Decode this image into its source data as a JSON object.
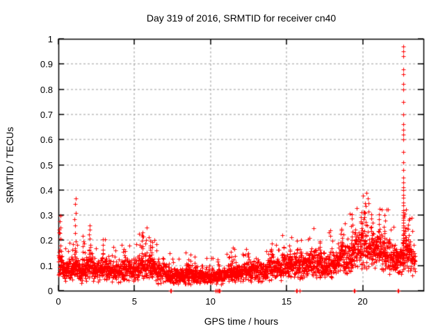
{
  "chart_data": {
    "type": "scatter",
    "title": "Day 319 of 2016, SRMTID for receiver cn40",
    "xlabel": "GPS time / hours",
    "ylabel": "SRMTID / TECUs",
    "xlim": [
      0,
      24
    ],
    "ylim": [
      0,
      1
    ],
    "xticks": {
      "values": [
        0,
        5,
        10,
        15,
        20
      ],
      "labels": [
        "0",
        "5",
        "10",
        "15",
        "20"
      ]
    },
    "yticks": {
      "values": [
        0,
        0.1,
        0.2,
        0.3,
        0.4,
        0.5,
        0.6,
        0.7,
        0.8,
        0.9,
        1
      ],
      "labels": [
        "0",
        "0.1",
        "0.2",
        "0.3",
        "0.4",
        "0.5",
        "0.6",
        "0.7",
        "0.8",
        "0.9",
        "1"
      ]
    },
    "grid": {
      "on": true,
      "color": "#9a9a9a",
      "dash": [
        3,
        3
      ]
    },
    "legend": "none",
    "marker": {
      "shape": "plus",
      "color": "#ff0000",
      "size": 7,
      "stroke": 1
    },
    "border_color": "#000000",
    "series": [
      {
        "name": "SRMTID cn40",
        "sample_step_hours": 0.008333,
        "x_start": 0.0,
        "x_end": 23.45,
        "seed": 319,
        "band_anchors": [
          [
            0.0,
            0.11,
            0.07
          ],
          [
            0.3,
            0.09,
            0.05
          ],
          [
            0.7,
            0.08,
            0.045
          ],
          [
            1.0,
            0.09,
            0.05
          ],
          [
            1.5,
            0.08,
            0.045
          ],
          [
            2.0,
            0.1,
            0.06
          ],
          [
            2.5,
            0.08,
            0.045
          ],
          [
            3.0,
            0.09,
            0.05
          ],
          [
            3.5,
            0.075,
            0.04
          ],
          [
            4.0,
            0.08,
            0.045
          ],
          [
            4.5,
            0.085,
            0.05
          ],
          [
            5.0,
            0.08,
            0.045
          ],
          [
            5.5,
            0.1,
            0.06
          ],
          [
            6.0,
            0.1,
            0.06
          ],
          [
            6.5,
            0.08,
            0.05
          ],
          [
            7.0,
            0.07,
            0.04
          ],
          [
            7.5,
            0.06,
            0.035
          ],
          [
            8.0,
            0.06,
            0.035
          ],
          [
            8.5,
            0.065,
            0.04
          ],
          [
            9.0,
            0.06,
            0.035
          ],
          [
            9.5,
            0.055,
            0.03
          ],
          [
            10.0,
            0.06,
            0.035
          ],
          [
            10.5,
            0.055,
            0.03
          ],
          [
            11.0,
            0.065,
            0.04
          ],
          [
            11.5,
            0.07,
            0.04
          ],
          [
            12.0,
            0.07,
            0.04
          ],
          [
            12.5,
            0.075,
            0.045
          ],
          [
            13.0,
            0.08,
            0.045
          ],
          [
            13.5,
            0.08,
            0.045
          ],
          [
            14.0,
            0.09,
            0.05
          ],
          [
            14.5,
            0.09,
            0.05
          ],
          [
            15.0,
            0.1,
            0.055
          ],
          [
            15.5,
            0.1,
            0.05
          ],
          [
            16.0,
            0.1,
            0.055
          ],
          [
            16.5,
            0.11,
            0.055
          ],
          [
            17.0,
            0.11,
            0.06
          ],
          [
            17.5,
            0.1,
            0.055
          ],
          [
            18.0,
            0.11,
            0.06
          ],
          [
            18.5,
            0.13,
            0.065
          ],
          [
            19.0,
            0.13,
            0.07
          ],
          [
            19.5,
            0.16,
            0.08
          ],
          [
            20.0,
            0.18,
            0.09
          ],
          [
            20.5,
            0.17,
            0.085
          ],
          [
            21.0,
            0.16,
            0.08
          ],
          [
            21.5,
            0.15,
            0.08
          ],
          [
            22.0,
            0.13,
            0.07
          ],
          [
            22.4,
            0.12,
            0.065
          ],
          [
            22.8,
            0.15,
            0.07
          ],
          [
            23.0,
            0.15,
            0.07
          ],
          [
            23.45,
            0.12,
            0.06
          ]
        ],
        "peak_columns": [
          {
            "x": 0.1,
            "top": 0.3,
            "n": 8
          },
          {
            "x": 1.12,
            "top": 0.37,
            "n": 10
          },
          {
            "x": 1.6,
            "top": 0.22,
            "n": 6
          },
          {
            "x": 2.05,
            "top": 0.26,
            "n": 8
          },
          {
            "x": 2.9,
            "top": 0.2,
            "n": 6
          },
          {
            "x": 4.3,
            "top": 0.17,
            "n": 5
          },
          {
            "x": 5.5,
            "top": 0.23,
            "n": 7
          },
          {
            "x": 6.0,
            "top": 0.21,
            "n": 7
          },
          {
            "x": 6.15,
            "top": 0.19,
            "n": 5
          },
          {
            "x": 8.5,
            "top": 0.12,
            "n": 4
          },
          {
            "x": 9.0,
            "top": 0.13,
            "n": 4
          },
          {
            "x": 11.4,
            "top": 0.15,
            "n": 5
          },
          {
            "x": 12.5,
            "top": 0.15,
            "n": 5
          },
          {
            "x": 14.0,
            "top": 0.17,
            "n": 5
          },
          {
            "x": 15.2,
            "top": 0.18,
            "n": 5
          },
          {
            "x": 17.2,
            "top": 0.2,
            "n": 6
          },
          {
            "x": 18.6,
            "top": 0.25,
            "n": 7
          },
          {
            "x": 19.3,
            "top": 0.3,
            "n": 8
          },
          {
            "x": 19.9,
            "top": 0.31,
            "n": 7
          },
          {
            "x": 20.15,
            "top": 0.35,
            "n": 8
          },
          {
            "x": 20.6,
            "top": 0.3,
            "n": 7
          },
          {
            "x": 21.1,
            "top": 0.33,
            "n": 7
          },
          {
            "x": 21.45,
            "top": 0.3,
            "n": 6
          },
          {
            "x": 22.85,
            "top": 0.25,
            "n": 5
          },
          {
            "x": 23.0,
            "top": 0.28,
            "n": 6
          }
        ],
        "spike_column": {
          "x": 22.68,
          "values": [
            0.97,
            0.95,
            0.93,
            0.88,
            0.86,
            0.82,
            0.8,
            0.75,
            0.7,
            0.66,
            0.64,
            0.62,
            0.6,
            0.55,
            0.51,
            0.48,
            0.45,
            0.43,
            0.41,
            0.4,
            0.38,
            0.37,
            0.35,
            0.34,
            0.32,
            0.31,
            0.3,
            0.29,
            0.28,
            0.27,
            0.26,
            0.25,
            0.24,
            0.23,
            0.22,
            0.21,
            0.2,
            0.19,
            0.18,
            0.17,
            0.16,
            0.15,
            0.14,
            0.13,
            0.12,
            0.11,
            0.1
          ]
        },
        "zero_markers_x": [
          7.35,
          7.4,
          7.42,
          10.35,
          10.4,
          10.52,
          10.55,
          10.6,
          15.65,
          15.7,
          15.88,
          19.42,
          19.47,
          22.32,
          22.37
        ]
      }
    ]
  }
}
